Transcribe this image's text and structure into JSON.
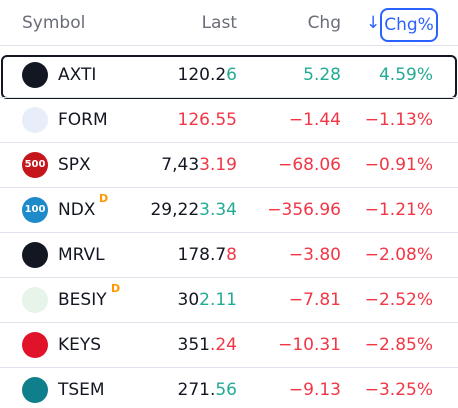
{
  "header": {
    "symbol": "Symbol",
    "last": "Last",
    "chg": "Chg",
    "sort_arrow": "↓",
    "chg_pct": "Chg%"
  },
  "colors": {
    "up": "#22ab94",
    "down": "#f23645"
  },
  "rows": [
    {
      "symbol": "AXTI",
      "icon_color": "#131722",
      "selected": true,
      "last": [
        {
          "text": "120.2"
        },
        {
          "text": "6",
          "tone": "up"
        }
      ],
      "chg": "5.28",
      "chg_pct": "4.59%",
      "tone": "up"
    },
    {
      "symbol": "FORM",
      "icon_color": "#e8eef9",
      "last": [
        {
          "text": "126.55",
          "tone": "down"
        }
      ],
      "chg": "−1.44",
      "chg_pct": "−1.13%",
      "tone": "down"
    },
    {
      "symbol": "SPX",
      "icon_color": "#c4161c",
      "icon_text": "500",
      "last": [
        {
          "text": "7,43"
        },
        {
          "text": "3.19",
          "tone": "down"
        }
      ],
      "chg": "−68.06",
      "chg_pct": "−0.91%",
      "tone": "down"
    },
    {
      "symbol": "NDX",
      "icon_color": "#1d8ac9",
      "icon_text": "100",
      "badge": "D",
      "last": [
        {
          "text": "29,22"
        },
        {
          "text": "3.34",
          "tone": "up"
        }
      ],
      "chg": "−356.96",
      "chg_pct": "−1.21%",
      "tone": "down"
    },
    {
      "symbol": "MRVL",
      "icon_color": "#131722",
      "last": [
        {
          "text": "178.7"
        },
        {
          "text": "8",
          "tone": "down"
        }
      ],
      "chg": "−3.80",
      "chg_pct": "−2.08%",
      "tone": "down"
    },
    {
      "symbol": "BESIY",
      "icon_color": "#e6f4ea",
      "badge": "D",
      "last": [
        {
          "text": "30"
        },
        {
          "text": "2.11",
          "tone": "up"
        }
      ],
      "chg": "−7.81",
      "chg_pct": "−2.52%",
      "tone": "down"
    },
    {
      "symbol": "KEYS",
      "icon_color": "#e0132a",
      "last": [
        {
          "text": "351"
        },
        {
          "text": ".24",
          "tone": "down"
        }
      ],
      "chg": "−10.31",
      "chg_pct": "−2.85%",
      "tone": "down"
    },
    {
      "symbol": "TSEM",
      "icon_color": "#0f7f8c",
      "last": [
        {
          "text": "271."
        },
        {
          "text": "56",
          "tone": "up"
        }
      ],
      "chg": "−9.13",
      "chg_pct": "−3.25%",
      "tone": "down"
    }
  ]
}
